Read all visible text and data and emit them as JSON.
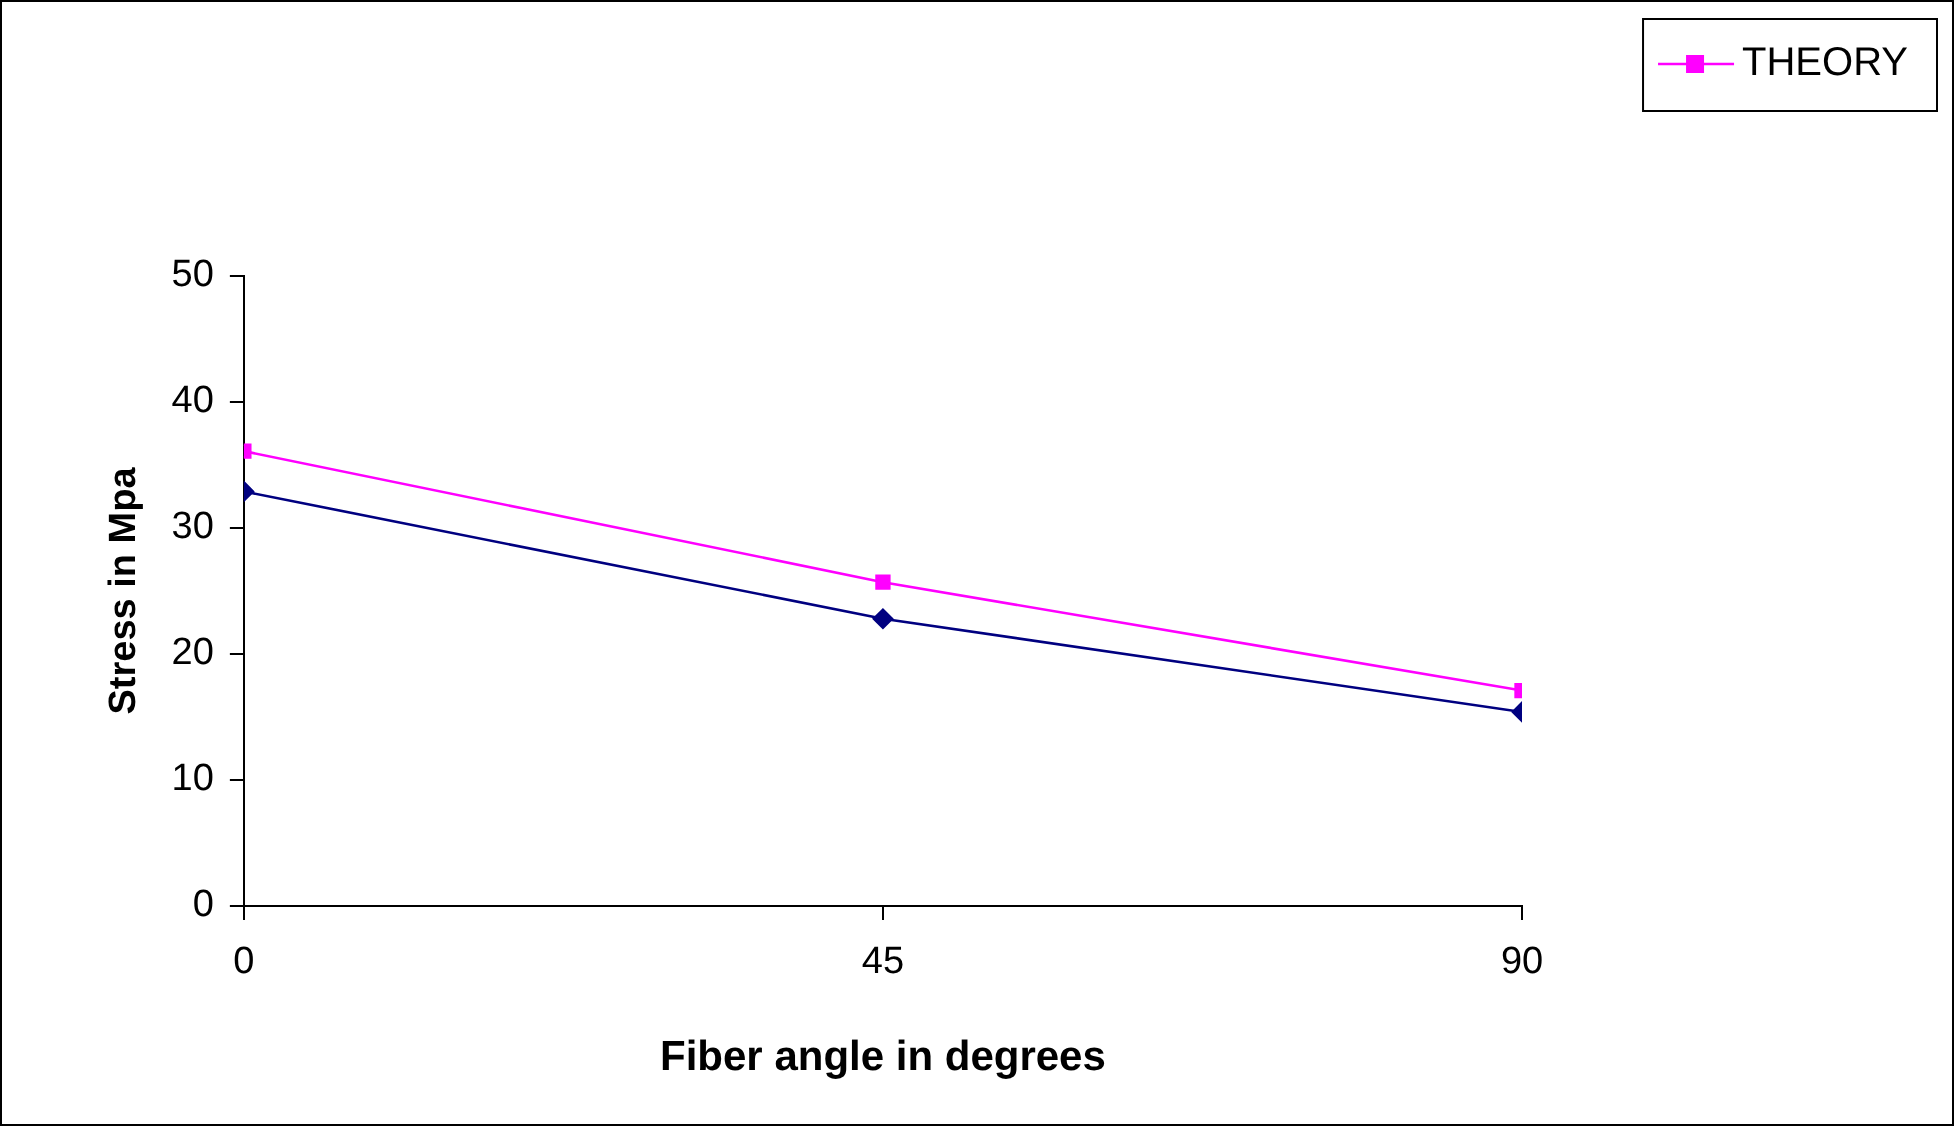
{
  "chart_data": {
    "type": "line",
    "xlabel": "Fiber angle in degrees",
    "ylabel": "Stress in Mpa",
    "x": [
      0,
      45,
      90
    ],
    "xlim": [
      0,
      90
    ],
    "xticks": [
      0,
      45,
      90
    ],
    "ylim": [
      0,
      50
    ],
    "yticks": [
      0,
      10,
      20,
      30,
      40,
      50
    ],
    "series": [
      {
        "color": "#000080",
        "marker": "diamond",
        "values": [
          32.9,
          22.8,
          15.4
        ]
      },
      {
        "name": "THEORY",
        "color": "#ff00ff",
        "marker": "square",
        "values": [
          36.1,
          25.7,
          17.1
        ]
      }
    ],
    "grid": false,
    "legend": "top right",
    "line_style": "solid"
  }
}
